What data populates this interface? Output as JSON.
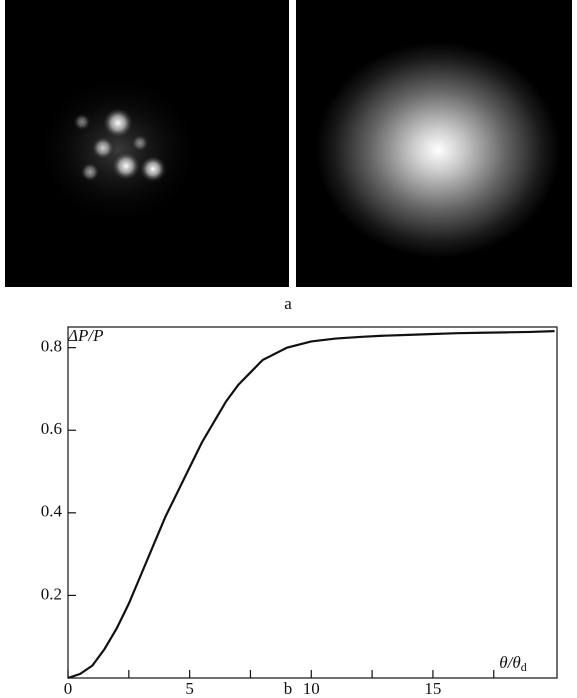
{
  "panel_a_label": "a",
  "chart_data": {
    "type": "line",
    "panel_label": "b",
    "y_label": "ΔP/P",
    "x_label": "θ/θ",
    "x_label_sub": "d",
    "x": [
      0,
      0.5,
      1,
      1.5,
      2,
      2.5,
      3,
      3.5,
      4,
      4.5,
      5,
      5.5,
      6,
      6.5,
      7,
      7.5,
      8,
      9,
      10,
      11,
      12,
      13,
      14,
      15,
      16,
      17,
      18,
      19,
      20
    ],
    "values": [
      0,
      0.01,
      0.03,
      0.07,
      0.12,
      0.18,
      0.25,
      0.32,
      0.39,
      0.45,
      0.51,
      0.57,
      0.62,
      0.67,
      0.71,
      0.74,
      0.77,
      0.8,
      0.815,
      0.822,
      0.826,
      0.829,
      0.831,
      0.833,
      0.835,
      0.836,
      0.837,
      0.838,
      0.84
    ],
    "color": "#111111",
    "xlim": [
      0,
      20.1
    ],
    "ylim": [
      0,
      0.85
    ],
    "xticks": [
      0,
      5,
      10,
      15
    ],
    "xminorticks": [
      2.5,
      7.5,
      12.5,
      17.5
    ],
    "yticks": [
      0.2,
      0.4,
      0.6,
      0.8
    ]
  }
}
